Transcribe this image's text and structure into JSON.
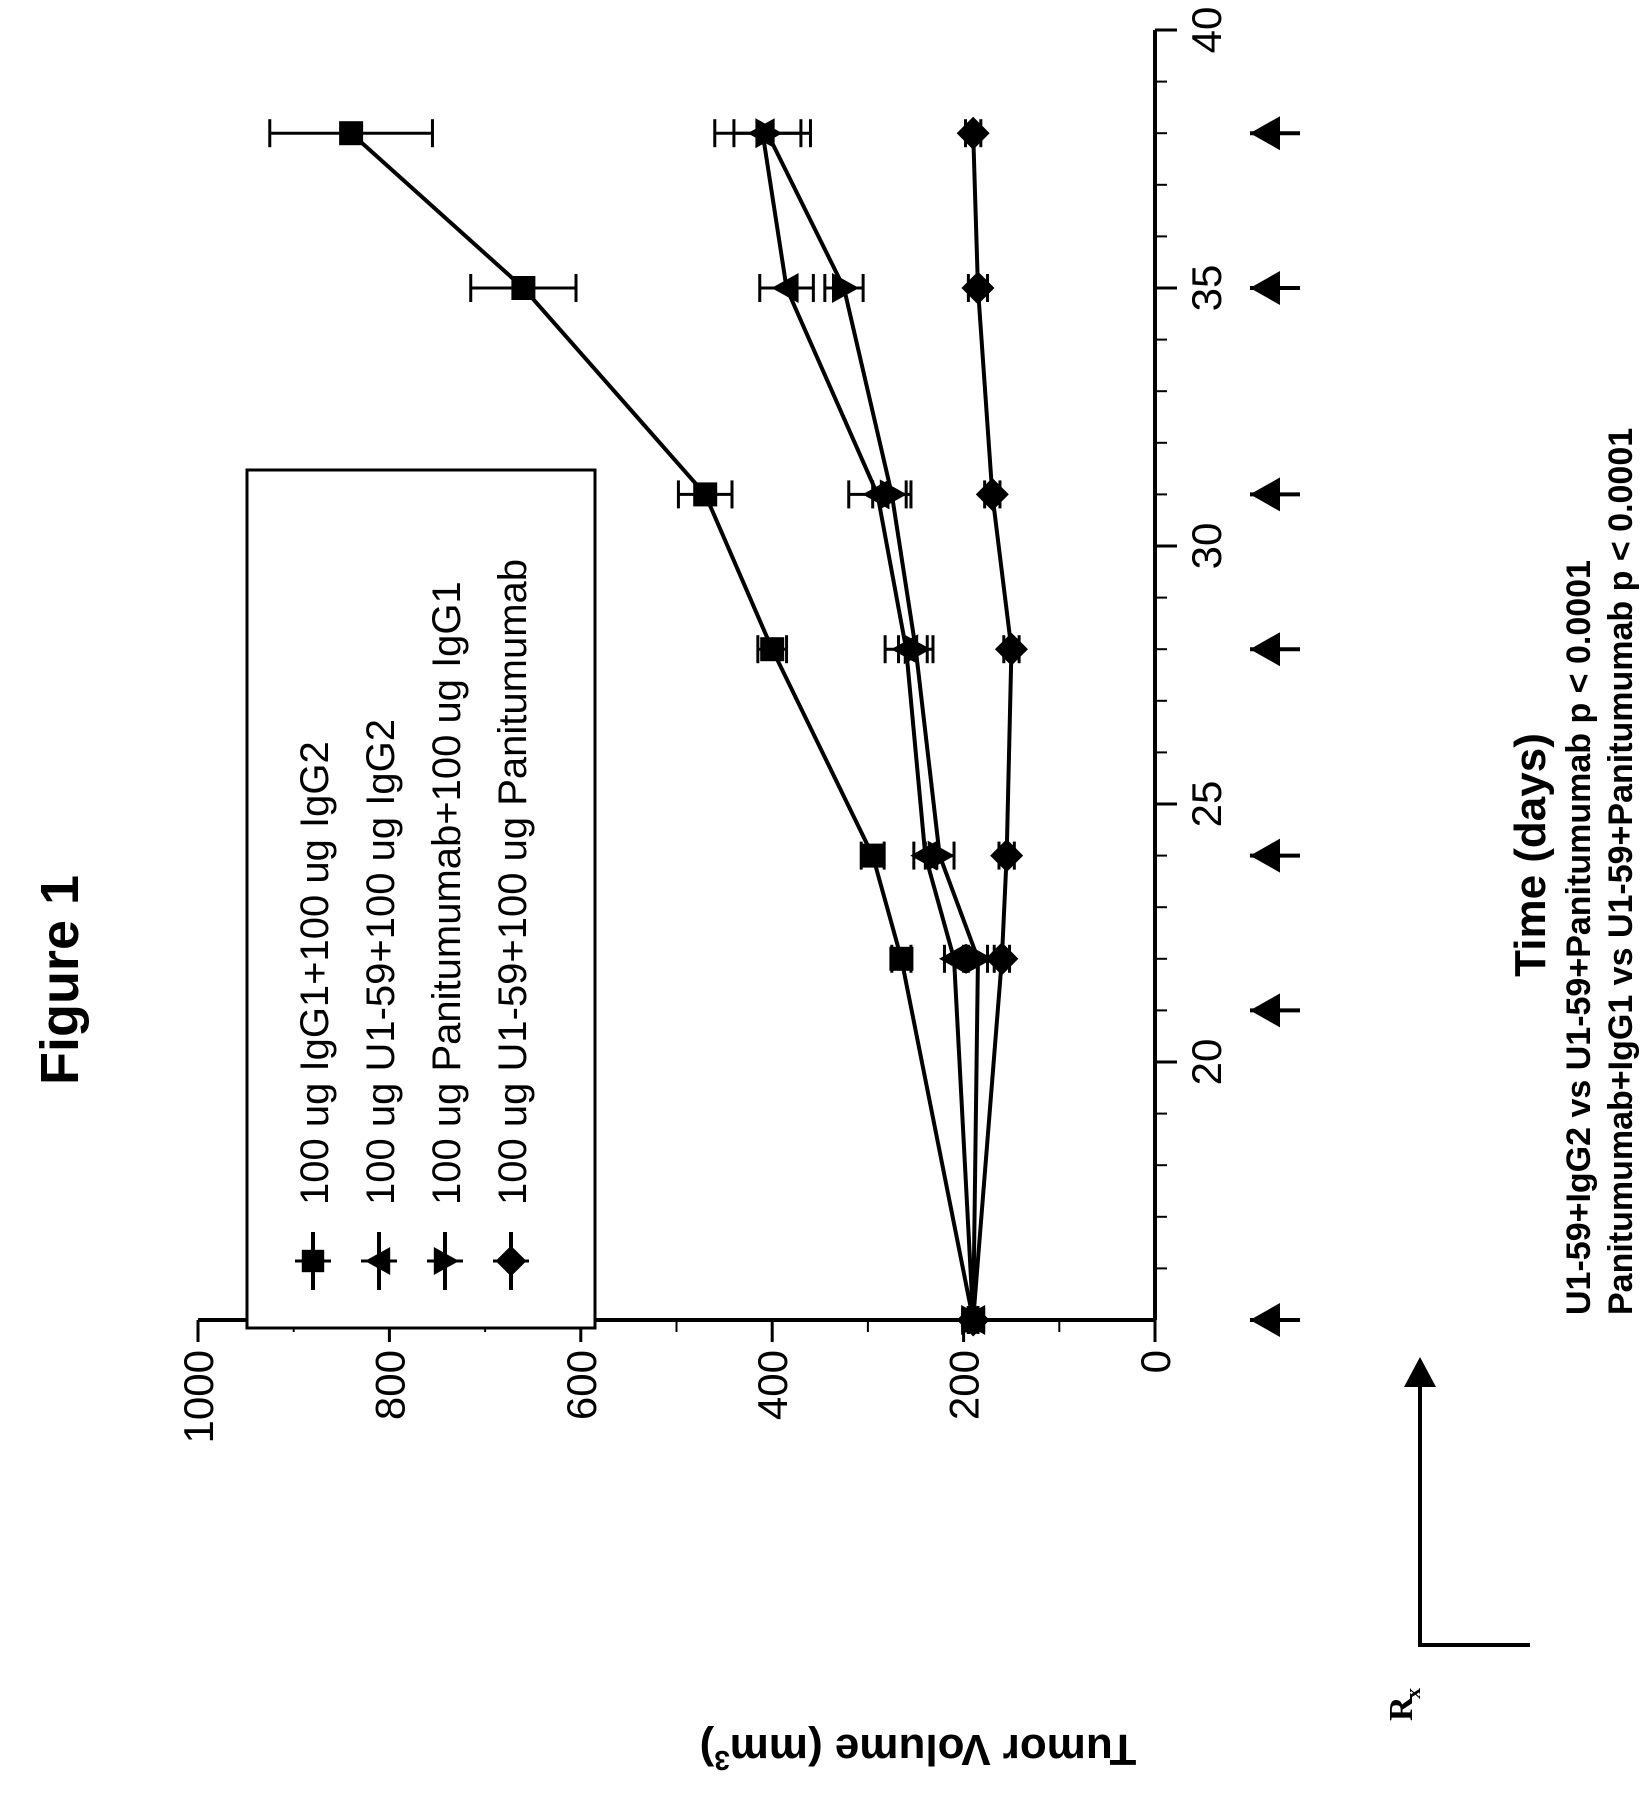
{
  "chart_data": {
    "type": "line",
    "title": "Figure 1",
    "xlabel": "Time (days)",
    "ylabel": "Tumor Volume (mm³)",
    "ylabel_main": "Tumor Volume (mm",
    "ylabel_sup": "3",
    "ylabel_end": ")",
    "xlim": [
      15,
      40
    ],
    "ylim": [
      0,
      1000
    ],
    "x_ticks": [
      "20",
      "25",
      "30",
      "35",
      "40"
    ],
    "y_ticks": [
      "0",
      "200",
      "400",
      "600",
      "800",
      "1000"
    ],
    "legend_position": "top-left",
    "grid": false,
    "series": [
      {
        "name": "100 ug IgG1+100 ug IgG2",
        "marker": "square",
        "x": [
          15,
          22,
          24,
          28,
          31,
          35,
          38
        ],
        "y": [
          190,
          265,
          295,
          400,
          470,
          660,
          840
        ],
        "err": [
          5,
          10,
          12,
          15,
          28,
          55,
          85
        ]
      },
      {
        "name": "100 ug U1-59+100 ug IgG2",
        "marker": "triangle-up",
        "x": [
          15,
          22,
          24,
          28,
          31,
          35,
          38
        ],
        "y": [
          190,
          210,
          240,
          260,
          290,
          385,
          410
        ],
        "err": [
          5,
          10,
          12,
          22,
          30,
          28,
          50
        ]
      },
      {
        "name": "100 ug Panitumumab+100 ug IgG1",
        "marker": "triangle-down",
        "x": [
          15,
          22,
          24,
          28,
          31,
          35,
          38
        ],
        "y": [
          190,
          185,
          225,
          250,
          275,
          325,
          405
        ],
        "err": [
          5,
          10,
          15,
          18,
          20,
          20,
          35
        ]
      },
      {
        "name": "100 ug U1-59+100 ug Panitumumab",
        "marker": "diamond",
        "x": [
          15,
          22,
          24,
          28,
          31,
          35,
          38
        ],
        "y": [
          190,
          160,
          155,
          150,
          170,
          185,
          190
        ],
        "err": [
          5,
          8,
          8,
          8,
          8,
          10,
          8
        ]
      }
    ],
    "treatment_days": [
      15,
      21,
      24,
      28,
      31,
      35,
      38
    ],
    "treatment_label": "R",
    "treatment_label_sub": "x",
    "annotations": [
      "U1-59+IgG2 vs U1-59+Panitumumab p < 0.0001",
      "Panitumumab+IgG1 vs U1-59+Panitumumab p < 0.0001"
    ]
  }
}
